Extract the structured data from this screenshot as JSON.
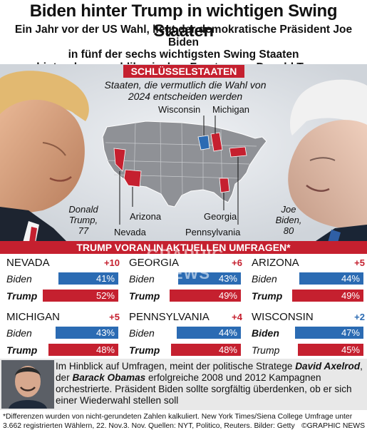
{
  "title": "Biden hinter Trump in wichtigen Swing Staaten",
  "subtitle": [
    "Ein Jahr vor der US Wahl, liegt der demokratische Präsident Joe Biden",
    "in fünf der sechs wichtigsten Swing Staaten",
    "hinter dem republikanischen Frontrunner Donald Trump"
  ],
  "key_states_banner": "SCHLÜSSELSTAATEN",
  "hero_caption": [
    "Staaten, die vermutlich die Wahl von",
    "2024 entscheiden werden"
  ],
  "map_labels": {
    "wisconsin": "Wisconsin",
    "michigan": "Michigan",
    "arizona": "Arizona",
    "georgia": "Georgia",
    "nevada": "Nevada",
    "pennsylvania": "Pennsylvania"
  },
  "candidates": {
    "trump": {
      "name_line1": "Donald",
      "name_line2": "Trump,",
      "age": "77"
    },
    "biden": {
      "name_line1": "Joe",
      "name_line2": "Biden,",
      "age": "80"
    }
  },
  "poll_banner": "TRUMP VORAN IN AKTUELLEN UMFRAGEN*",
  "watermark": "GRAPHIC NEWS",
  "colors": {
    "democrat": "#2b6bb3",
    "republican": "#c5202f",
    "map_grey": "#8f9196"
  },
  "chart_data": {
    "type": "bar",
    "unit": "%",
    "panels": [
      {
        "state": "NEVADA",
        "margin": "+10",
        "leader": "Trump",
        "rows": [
          {
            "name": "Biden",
            "value": 41,
            "label": "41%",
            "party": "dem"
          },
          {
            "name": "Trump",
            "value": 52,
            "label": "52%",
            "party": "rep"
          }
        ]
      },
      {
        "state": "GEORGIA",
        "margin": "+6",
        "leader": "Trump",
        "rows": [
          {
            "name": "Biden",
            "value": 43,
            "label": "43%",
            "party": "dem"
          },
          {
            "name": "Trump",
            "value": 49,
            "label": "49%",
            "party": "rep"
          }
        ]
      },
      {
        "state": "ARIZONA",
        "margin": "+5",
        "leader": "Trump",
        "rows": [
          {
            "name": "Biden",
            "value": 44,
            "label": "44%",
            "party": "dem"
          },
          {
            "name": "Trump",
            "value": 49,
            "label": "49%",
            "party": "rep"
          }
        ]
      },
      {
        "state": "MICHIGAN",
        "margin": "+5",
        "leader": "Trump",
        "rows": [
          {
            "name": "Biden",
            "value": 43,
            "label": "43%",
            "party": "dem"
          },
          {
            "name": "Trump",
            "value": 48,
            "label": "48%",
            "party": "rep"
          }
        ]
      },
      {
        "state": "PENNSYLVANIA",
        "margin": "+4",
        "leader": "Trump",
        "rows": [
          {
            "name": "Biden",
            "value": 44,
            "label": "44%",
            "party": "dem"
          },
          {
            "name": "Trump",
            "value": 48,
            "label": "48%",
            "party": "rep"
          }
        ]
      },
      {
        "state": "WISCONSIN",
        "margin": "+2",
        "leader": "Biden",
        "rows": [
          {
            "name": "Biden",
            "value": 47,
            "label": "47%",
            "party": "dem"
          },
          {
            "name": "Trump",
            "value": 45,
            "label": "45%",
            "party": "rep"
          }
        ]
      }
    ]
  },
  "axelrod": {
    "part1": "Im Hinblick auf Umfragen, meint der politische Stratege ",
    "name1": "David Axelrod",
    "part2": ", der ",
    "name2": "Barack Obamas",
    "part3": " erfolgreiche 2008 und 2012 Kampagnen orchestrierte. Präsident Biden sollte sorgfältig überdenken, ob er sich einer Wiederwahl stellen soll"
  },
  "footer": [
    "*Differenzen wurden von nicht-gerundeten Zahlen kalkuliert.  New York Times/Siena College Umfrage unter",
    "3.662 registrierten Wählern, 22. Nov.3. Nov.  Quellen: NYT, Politico, Reuters. Bilder: Getty",
    "©GRAPHIC NEWS"
  ]
}
